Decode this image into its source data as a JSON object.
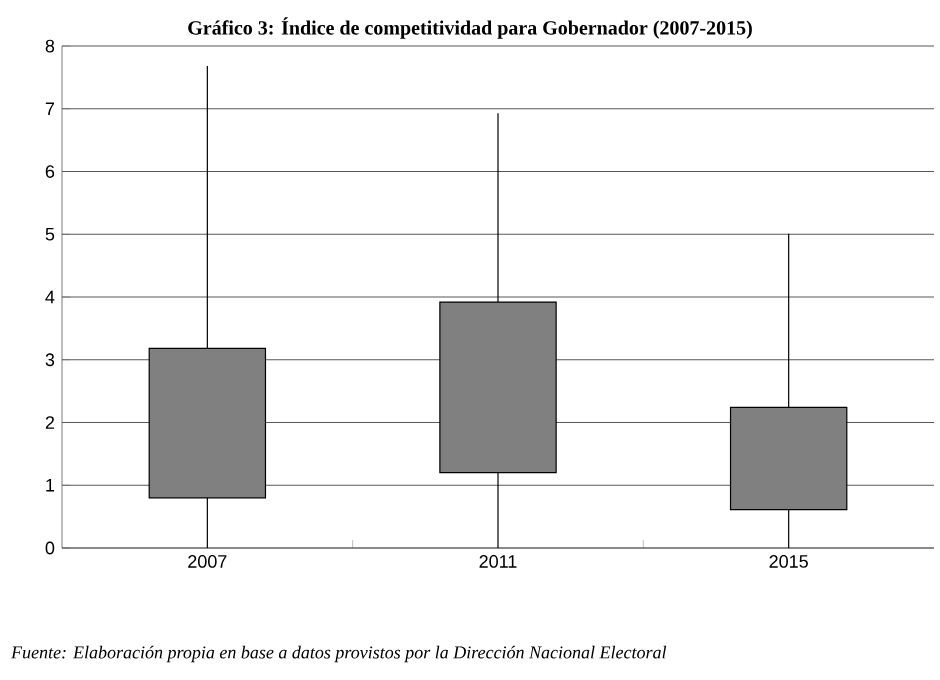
{
  "chart_data": {
    "type": "box",
    "title": "Gráfico 3: Índice de competitividad para Gobernador (2007-2015)",
    "categories": [
      "2007",
      "2011",
      "2015"
    ],
    "boxes": [
      {
        "low": 0,
        "q1": 0.8,
        "q3": 3.18,
        "high": 7.68
      },
      {
        "low": 0,
        "q1": 1.2,
        "q3": 3.92,
        "high": 6.93
      },
      {
        "low": 0,
        "q1": 0.61,
        "q3": 2.24,
        "high": 5.01
      }
    ],
    "color": "#808080",
    "ylim": [
      0,
      8
    ],
    "yticks": [
      0,
      1,
      2,
      3,
      4,
      5,
      6,
      7,
      8
    ],
    "grid": "y",
    "annotations": [
      "Fuente: Elaboración propia en base a datos provistos por la Dirección Nacional Electoral"
    ]
  }
}
